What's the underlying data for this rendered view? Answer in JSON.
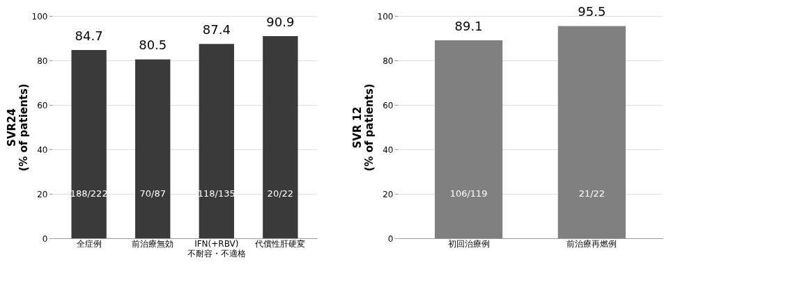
{
  "chart_data": [
    {
      "type": "bar",
      "ylabel": "SVR24\n(% of patients)",
      "categories": [
        "全症例",
        "前治療無効",
        "IFN(+RBV)\n不耐容・不適格",
        "代償性肝硬変"
      ],
      "values": [
        84.7,
        80.5,
        87.4,
        90.9
      ],
      "color": "#3a3a3a",
      "data_labels": true,
      "ylim": [
        0,
        100
      ],
      "yticks": [
        0,
        20,
        40,
        60,
        80,
        100
      ],
      "grid": "y",
      "annotations": [
        "188/222",
        "70/87",
        "118/135",
        "20/22"
      ]
    },
    {
      "type": "bar",
      "ylabel": "SVR 12\n(% of patients)",
      "categories": [
        "初回治療例",
        "前治療再燃例"
      ],
      "values": [
        89.1,
        95.5
      ],
      "color": "#808080",
      "data_labels": true,
      "ylim": [
        0,
        100
      ],
      "yticks": [
        0,
        20,
        40,
        60,
        80,
        100
      ],
      "grid": "y",
      "annotations": [
        "106/119",
        "21/22"
      ]
    }
  ]
}
